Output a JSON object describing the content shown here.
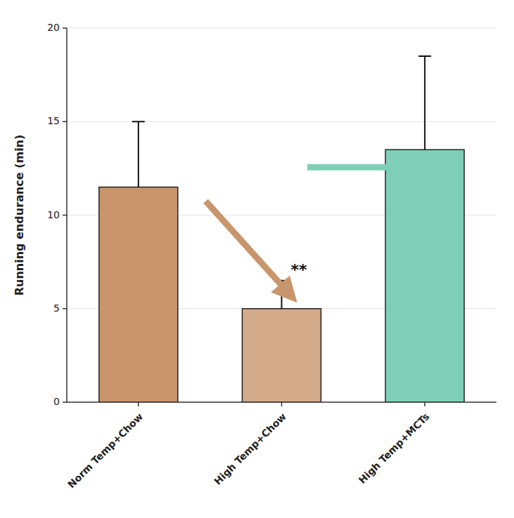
{
  "chart_data": {
    "type": "bar",
    "categories": [
      "Norm Temp+Chow",
      "High Temp+Chow",
      "High Temp+MCTs"
    ],
    "values": [
      11.5,
      5.0,
      13.5
    ],
    "errors": [
      3.5,
      1.5,
      5.0
    ],
    "colors": [
      "#c8956c",
      "#d4ab8a",
      "#7ecfb5"
    ],
    "y_label": "Running endurance (min)",
    "ylim": [
      0,
      20
    ],
    "yticks": [
      0,
      5,
      10,
      15,
      20
    ],
    "annotations": [
      {
        "text": "**",
        "index": 1
      }
    ]
  }
}
